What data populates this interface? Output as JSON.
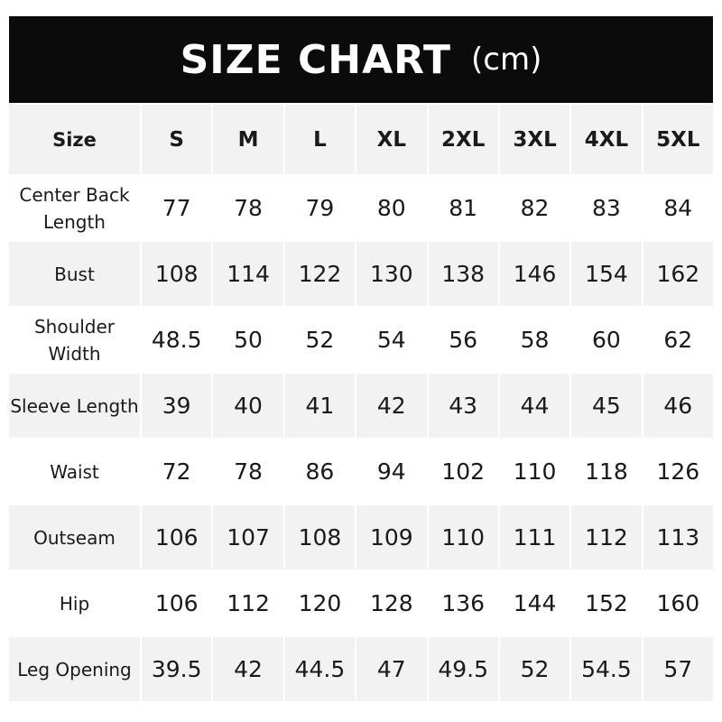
{
  "title": {
    "main": "SIZE CHART",
    "unit": "(cm)"
  },
  "header": {
    "label": "Size",
    "sizes": [
      "S",
      "M",
      "L",
      "XL",
      "2XL",
      "3XL",
      "4XL",
      "5XL"
    ]
  },
  "rows": [
    {
      "label": "Center Back Length",
      "values": [
        "77",
        "78",
        "79",
        "80",
        "81",
        "82",
        "83",
        "84"
      ]
    },
    {
      "label": "Bust",
      "values": [
        "108",
        "114",
        "122",
        "130",
        "138",
        "146",
        "154",
        "162"
      ]
    },
    {
      "label": "Shoulder Width",
      "values": [
        "48.5",
        "50",
        "52",
        "54",
        "56",
        "58",
        "60",
        "62"
      ]
    },
    {
      "label": "Sleeve Length",
      "values": [
        "39",
        "40",
        "41",
        "42",
        "43",
        "44",
        "45",
        "46"
      ]
    },
    {
      "label": "Waist",
      "values": [
        "72",
        "78",
        "86",
        "94",
        "102",
        "110",
        "118",
        "126"
      ]
    },
    {
      "label": "Outseam",
      "values": [
        "106",
        "107",
        "108",
        "109",
        "110",
        "111",
        "112",
        "113"
      ]
    },
    {
      "label": "Hip",
      "values": [
        "106",
        "112",
        "120",
        "128",
        "136",
        "144",
        "152",
        "160"
      ]
    },
    {
      "label": "Leg Opening",
      "values": [
        "39.5",
        "42",
        "44.5",
        "47",
        "49.5",
        "52",
        "54.5",
        "57"
      ]
    }
  ]
}
